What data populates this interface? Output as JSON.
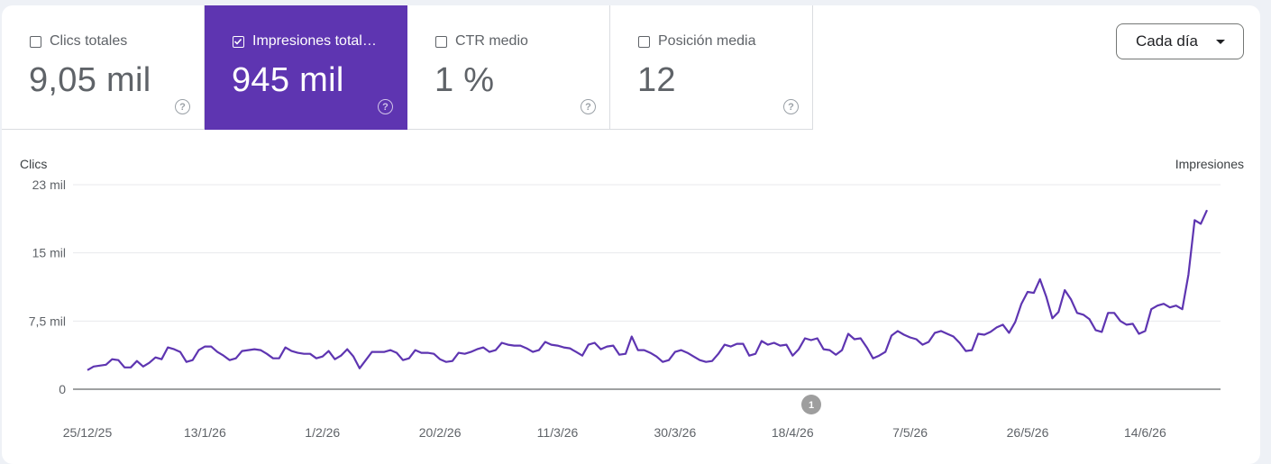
{
  "metrics": [
    {
      "label": "Clics totales",
      "value": "9,05 mil",
      "checked": false
    },
    {
      "label": "Impresiones total…",
      "value": "945 mil",
      "checked": true
    },
    {
      "label": "CTR medio",
      "value": "1 %",
      "checked": false
    },
    {
      "label": "Posición media",
      "value": "12",
      "checked": false
    }
  ],
  "help_glyph": "?",
  "period_select": {
    "value": "Cada día"
  },
  "colors": {
    "accent": "#5e35b1",
    "line": "#5e35b1",
    "annotation": "#9e9e9e"
  },
  "icons": {
    "checkbox": "checkbox-icon",
    "help": "help-circle-icon",
    "caret": "caret-down-icon"
  },
  "annotation_label": "1",
  "chart_data": {
    "type": "line",
    "left_axis_title": "Clics",
    "right_axis_title": "Impresiones",
    "y_ticks": [
      {
        "label": "0",
        "value": 0
      },
      {
        "label": "7,5 mil",
        "value": 7500
      },
      {
        "label": "15 mil",
        "value": 15000
      },
      {
        "label": "23 mil",
        "value": 22500
      }
    ],
    "ylim": [
      0,
      22500
    ],
    "x_ticks": [
      "25/12/25",
      "13/1/26",
      "1/2/26",
      "20/2/26",
      "11/3/26",
      "30/3/26",
      "18/4/26",
      "7/5/26",
      "26/5/26",
      "14/6/26"
    ],
    "x_tick_days": [
      0,
      19,
      38,
      57,
      76,
      95,
      114,
      133,
      152,
      171
    ],
    "grid": true,
    "series": [
      {
        "values": [
          2100,
          2500,
          2600,
          2700,
          3300,
          3200,
          2400,
          2400,
          3100,
          2500,
          2900,
          3500,
          3300,
          4600,
          4400,
          4100,
          3000,
          3200,
          4300,
          4700,
          4700,
          4100,
          3700,
          3200,
          3400,
          4200,
          4300,
          4400,
          4300,
          3900,
          3400,
          3400,
          4600,
          4200,
          4000,
          3900,
          3900,
          3400,
          3600,
          4200,
          3300,
          3700,
          4400,
          3600,
          2300,
          3200,
          4100,
          4100,
          4100,
          4300,
          4000,
          3200,
          3400,
          4300,
          4000,
          4000,
          3900,
          3300,
          3000,
          3100,
          4000,
          3900,
          4100,
          4400,
          4600,
          4100,
          4300,
          5100,
          4900,
          4800,
          4800,
          4500,
          4100,
          4300,
          5200,
          4900,
          4800,
          4600,
          4500,
          4100,
          3700,
          4900,
          5100,
          4400,
          4700,
          4800,
          3800,
          3900,
          5800,
          4300,
          4300,
          4000,
          3600,
          3000,
          3200,
          4100,
          4300,
          4000,
          3600,
          3200,
          3000,
          3100,
          3900,
          4900,
          4700,
          5000,
          5000,
          3700,
          3900,
          5300,
          4900,
          5100,
          4800,
          4900,
          3700,
          4400,
          5600,
          5400,
          5600,
          4400,
          4300,
          3800,
          4300,
          6100,
          5500,
          5600,
          4600,
          3400,
          3700,
          4100,
          5900,
          6400,
          6000,
          5700,
          5500,
          4900,
          5200,
          6200,
          6400,
          6100,
          5800,
          5100,
          4200,
          4300,
          6100,
          6000,
          6300,
          6800,
          7100,
          6200,
          7400,
          9400,
          10700,
          10600,
          12100,
          10200,
          7800,
          8500,
          10900,
          9900,
          8400,
          8200,
          7700,
          6500,
          6300,
          8400,
          8400,
          7500,
          7100,
          7200,
          6100,
          6400,
          8800,
          9200,
          9400,
          9000,
          9200,
          8800,
          12600,
          18600,
          18200,
          19700
        ]
      }
    ]
  }
}
